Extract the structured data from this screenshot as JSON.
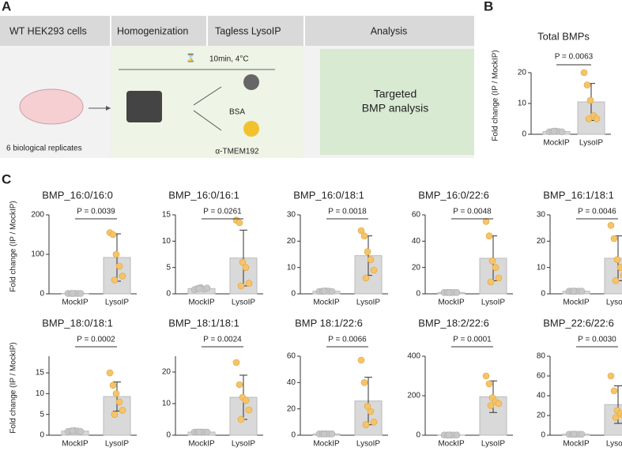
{
  "panel_labels": [
    "A",
    "B",
    "C"
  ],
  "workflow": {
    "steps": [
      "WT HEK293 cells",
      "Homogenization",
      "Tagless LysoIP",
      "Analysis"
    ],
    "cells": "6 biological replicates",
    "condition": "10min, 4°C",
    "controls": [
      "BSA",
      "α-TMEM192"
    ],
    "analysis": [
      "Targeted",
      "BMP analysis"
    ]
  },
  "chart_data": [
    {
      "type": "bar",
      "title": "Total BMPs",
      "ylabel": "Fold change (IP / MockIP)",
      "categories": [
        "MockIP",
        "LysoIP"
      ],
      "values": [
        0.9,
        10.5
      ],
      "errors": [
        0.2,
        6
      ],
      "points": [
        [
          0.8,
          0.9,
          1,
          0.9,
          0.8,
          1
        ],
        [
          20,
          16,
          11,
          6,
          5,
          5
        ]
      ],
      "ylim": [
        0,
        20
      ],
      "yticks": [
        0,
        10,
        20
      ],
      "annotation": "P = 0.0063",
      "color": "#d9d9d9",
      "point_colors": [
        "#c8c8c8",
        "#f5c46a"
      ]
    },
    {
      "type": "bar",
      "title": "BMP_16:0/16:0",
      "ylabel": "Fold change (IP / MockIP)",
      "categories": [
        "MockIP",
        "LysoIP"
      ],
      "values": [
        1,
        92
      ],
      "errors": [
        0.3,
        60
      ],
      "points": [
        [
          1,
          1,
          1,
          1,
          1,
          1
        ],
        [
          155,
          150,
          100,
          70,
          45,
          35
        ]
      ],
      "ylim": [
        0,
        200
      ],
      "yticks": [
        0,
        100,
        200
      ],
      "annotation": "P = 0.0039",
      "color": "#d9d9d9",
      "point_colors": [
        "#c8c8c8",
        "#f5c46a"
      ]
    },
    {
      "type": "bar",
      "title": "BMP_16:0/16:1",
      "categories": [
        "MockIP",
        "LysoIP"
      ],
      "values": [
        1,
        6.8
      ],
      "errors": [
        0.3,
        5.3
      ],
      "points": [
        [
          0.8,
          1,
          1.2,
          0.9,
          1.1,
          1
        ],
        [
          14,
          13.5,
          6,
          5,
          2,
          1.5
        ]
      ],
      "ylim": [
        0,
        15
      ],
      "yticks": [
        0,
        5,
        10,
        15
      ],
      "annotation": "P = 0.0261",
      "color": "#d9d9d9",
      "point_colors": [
        "#c8c8c8",
        "#f5c46a"
      ]
    },
    {
      "type": "bar",
      "title": "BMP_16:0/18:1",
      "categories": [
        "MockIP",
        "LysoIP"
      ],
      "values": [
        1,
        14.5
      ],
      "errors": [
        0.3,
        7.5
      ],
      "points": [
        [
          0.9,
          1,
          1.1,
          1,
          0.9,
          1
        ],
        [
          24,
          22,
          16,
          13,
          9,
          6
        ]
      ],
      "ylim": [
        0,
        30
      ],
      "yticks": [
        0,
        10,
        20,
        30
      ],
      "annotation": "P = 0.0018",
      "color": "#d9d9d9",
      "point_colors": [
        "#c8c8c8",
        "#f5c46a"
      ]
    },
    {
      "type": "bar",
      "title": "BMP_16:0/22:6",
      "categories": [
        "MockIP",
        "LysoIP"
      ],
      "values": [
        1,
        27
      ],
      "errors": [
        0.3,
        17
      ],
      "points": [
        [
          1,
          1,
          1,
          1,
          1,
          1
        ],
        [
          55,
          44,
          25,
          20,
          12,
          9
        ]
      ],
      "ylim": [
        0,
        60
      ],
      "yticks": [
        0,
        20,
        40,
        60
      ],
      "annotation": "P = 0.0048",
      "color": "#d9d9d9",
      "point_colors": [
        "#c8c8c8",
        "#f5c46a"
      ]
    },
    {
      "type": "bar",
      "title": "BMP_16:1/18:1",
      "categories": [
        "MockIP",
        "LysoIP"
      ],
      "values": [
        1,
        13.5
      ],
      "errors": [
        0.3,
        8.5
      ],
      "points": [
        [
          1,
          1,
          1,
          1,
          1,
          1
        ],
        [
          26,
          21,
          13,
          10,
          7,
          5
        ]
      ],
      "ylim": [
        0,
        30
      ],
      "yticks": [
        0,
        10,
        20,
        30
      ],
      "annotation": "P = 0.0046",
      "color": "#d9d9d9",
      "point_colors": [
        "#c8c8c8",
        "#f5c46a"
      ]
    },
    {
      "type": "bar",
      "title": "BMP_18:0/18:1",
      "ylabel": "Fold change (IP / MockIP)",
      "categories": [
        "MockIP",
        "LysoIP"
      ],
      "values": [
        1,
        9.3
      ],
      "errors": [
        0.3,
        3.5
      ],
      "points": [
        [
          0.9,
          1,
          1.1,
          1,
          0.9,
          1
        ],
        [
          15,
          12,
          10,
          8,
          6,
          5
        ]
      ],
      "ylim": [
        0,
        19
      ],
      "yticks": [
        0,
        5,
        10,
        15
      ],
      "annotation": "P = 0.0002",
      "color": "#d9d9d9",
      "point_colors": [
        "#c8c8c8",
        "#f5c46a"
      ]
    },
    {
      "type": "bar",
      "title": "BMP_18:1/18:1",
      "categories": [
        "MockIP",
        "LysoIP"
      ],
      "values": [
        1,
        12
      ],
      "errors": [
        0.3,
        7
      ],
      "points": [
        [
          1,
          1,
          1,
          1,
          1,
          1
        ],
        [
          23,
          16,
          12,
          11,
          8,
          5
        ]
      ],
      "ylim": [
        0,
        25
      ],
      "yticks": [
        0,
        10,
        20
      ],
      "annotation": "P = 0.0024",
      "color": "#d9d9d9",
      "point_colors": [
        "#c8c8c8",
        "#f5c46a"
      ]
    },
    {
      "type": "bar",
      "title": "BMP 18:1/22:6",
      "categories": [
        "MockIP",
        "LysoIP"
      ],
      "values": [
        1,
        26
      ],
      "errors": [
        0.3,
        18
      ],
      "points": [
        [
          1,
          1,
          1,
          1,
          1,
          1
        ],
        [
          57,
          40,
          22,
          18,
          10,
          8
        ]
      ],
      "ylim": [
        0,
        60
      ],
      "yticks": [
        0,
        20,
        40,
        60
      ],
      "annotation": "P = 0.0066",
      "color": "#d9d9d9",
      "point_colors": [
        "#c8c8c8",
        "#f5c46a"
      ]
    },
    {
      "type": "bar",
      "title": "BMP_18:2/22:6",
      "categories": [
        "MockIP",
        "LysoIP"
      ],
      "values": [
        1,
        195
      ],
      "errors": [
        0.3,
        80
      ],
      "points": [
        [
          1,
          1,
          1,
          1,
          1,
          1
        ],
        [
          300,
          260,
          190,
          170,
          160,
          150
        ]
      ],
      "ylim": [
        0,
        400
      ],
      "yticks": [
        0,
        200,
        400
      ],
      "annotation": "P = 0.0001",
      "color": "#d9d9d9",
      "point_colors": [
        "#c8c8c8",
        "#f5c46a"
      ]
    },
    {
      "type": "bar",
      "title": "BMP_22:6/22:6",
      "categories": [
        "MockIP",
        "LysoIP"
      ],
      "values": [
        1,
        31
      ],
      "errors": [
        0.3,
        19
      ],
      "points": [
        [
          1,
          1,
          1,
          1,
          1,
          1
        ],
        [
          60,
          45,
          25,
          22,
          20,
          18
        ]
      ],
      "ylim": [
        0,
        80
      ],
      "yticks": [
        0,
        20,
        40,
        60,
        80
      ],
      "annotation": "P = 0.0030",
      "color": "#d9d9d9",
      "point_colors": [
        "#c8c8c8",
        "#f5c46a"
      ]
    }
  ]
}
